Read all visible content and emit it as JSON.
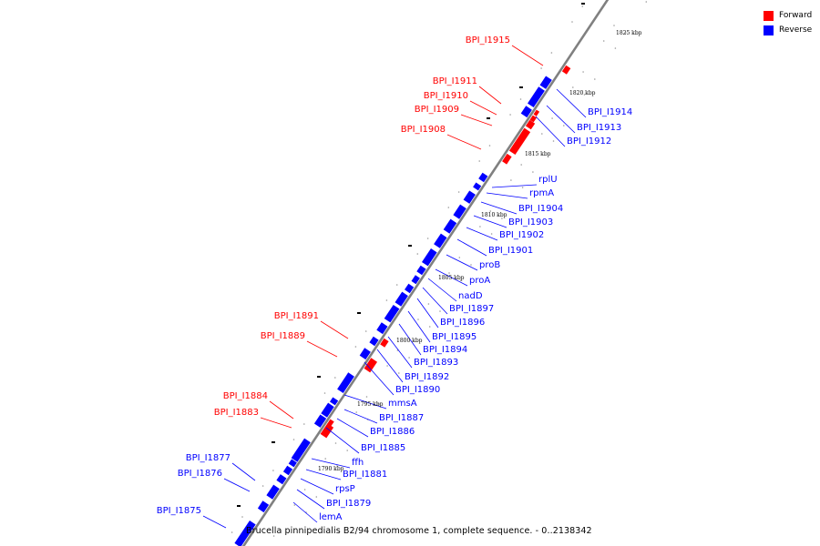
{
  "legend": {
    "forward": {
      "label": "Forward",
      "color": "#ff0000"
    },
    "reverse": {
      "label": "Reverse",
      "color": "#0000ff"
    }
  },
  "caption": "Brucella pinnipedialis B2/94 chromosome 1, complete sequence. - 0..2138342",
  "colors": {
    "forward": "#ff0000",
    "reverse": "#0000ff",
    "axis": "#808080"
  },
  "scale_ticks": [
    "1825 kbp",
    "1820 kbp",
    "1815 kbp",
    "1810 kbp",
    "1805 kbp",
    "1800 kbp",
    "1795 kbp",
    "1790 kbp"
  ],
  "genes": [
    {
      "name": "BPI_I1915",
      "strand": "forward"
    },
    {
      "name": "BPI_I1911",
      "strand": "forward"
    },
    {
      "name": "BPI_I1910",
      "strand": "forward"
    },
    {
      "name": "BPI_I1909",
      "strand": "forward"
    },
    {
      "name": "BPI_I1908",
      "strand": "forward"
    },
    {
      "name": "BPI_I1914",
      "strand": "reverse"
    },
    {
      "name": "BPI_I1913",
      "strand": "reverse"
    },
    {
      "name": "BPI_I1912",
      "strand": "reverse"
    },
    {
      "name": "rplU",
      "strand": "reverse"
    },
    {
      "name": "rpmA",
      "strand": "reverse"
    },
    {
      "name": "BPI_I1904",
      "strand": "reverse"
    },
    {
      "name": "BPI_I1903",
      "strand": "reverse"
    },
    {
      "name": "BPI_I1902",
      "strand": "reverse"
    },
    {
      "name": "BPI_I1901",
      "strand": "reverse"
    },
    {
      "name": "proB",
      "strand": "reverse"
    },
    {
      "name": "proA",
      "strand": "reverse"
    },
    {
      "name": "nadD",
      "strand": "reverse"
    },
    {
      "name": "BPI_I1897",
      "strand": "reverse"
    },
    {
      "name": "BPI_I1896",
      "strand": "reverse"
    },
    {
      "name": "BPI_I1895",
      "strand": "reverse"
    },
    {
      "name": "BPI_I1894",
      "strand": "reverse"
    },
    {
      "name": "BPI_I1893",
      "strand": "reverse"
    },
    {
      "name": "BPI_I1892",
      "strand": "reverse"
    },
    {
      "name": "BPI_I1890",
      "strand": "reverse"
    },
    {
      "name": "BPI_I1891",
      "strand": "forward"
    },
    {
      "name": "BPI_I1889",
      "strand": "forward"
    },
    {
      "name": "mmsA",
      "strand": "reverse"
    },
    {
      "name": "BPI_I1887",
      "strand": "reverse"
    },
    {
      "name": "BPI_I1886",
      "strand": "reverse"
    },
    {
      "name": "BPI_I1885",
      "strand": "reverse"
    },
    {
      "name": "BPI_I1884",
      "strand": "forward"
    },
    {
      "name": "BPI_I1883",
      "strand": "forward"
    },
    {
      "name": "ffh",
      "strand": "reverse"
    },
    {
      "name": "BPI_I1881",
      "strand": "reverse"
    },
    {
      "name": "rpsP",
      "strand": "reverse"
    },
    {
      "name": "BPI_I1879",
      "strand": "reverse"
    },
    {
      "name": "lemA",
      "strand": "reverse"
    },
    {
      "name": "BPI_I1877",
      "strand": "reverse"
    },
    {
      "name": "BPI_I1876",
      "strand": "reverse"
    },
    {
      "name": "BPI_I1875",
      "strand": "reverse"
    }
  ]
}
